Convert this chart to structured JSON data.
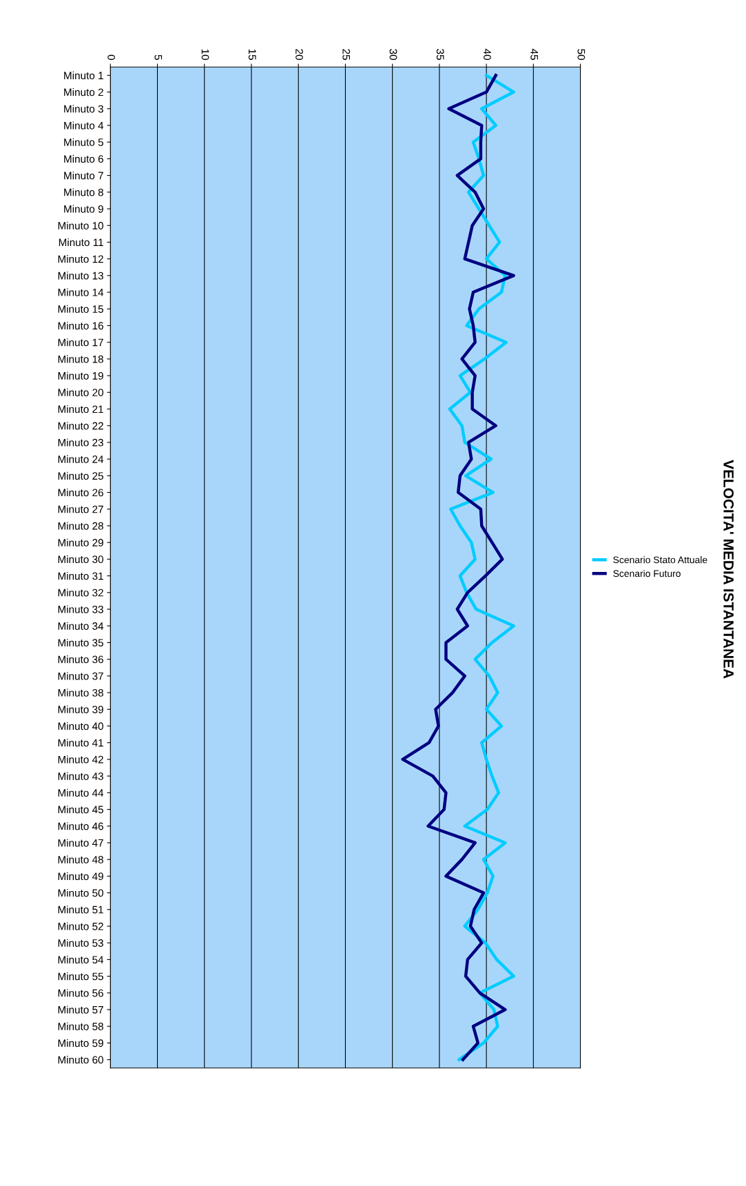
{
  "chart_data": {
    "type": "line",
    "orientation": "horizontal",
    "title": "VELOCITA' MEDIA ISTANTANEA",
    "categories": [
      "Minuto 1",
      "Minuto 2",
      "Minuto 3",
      "Minuto 4",
      "Minuto 5",
      "Minuto 6",
      "Minuto 7",
      "Minuto 8",
      "Minuto 9",
      "Minuto 10",
      "Minuto 11",
      "Minuto 12",
      "Minuto 13",
      "Minuto 14",
      "Minuto 15",
      "Minuto 16",
      "Minuto 17",
      "Minuto 18",
      "Minuto 19",
      "Minuto 20",
      "Minuto 21",
      "Minuto 22",
      "Minuto 23",
      "Minuto 24",
      "Minuto 25",
      "Minuto 26",
      "Minuto 27",
      "Minuto 28",
      "Minuto 29",
      "Minuto 30",
      "Minuto 31",
      "Minuto 32",
      "Minuto 33",
      "Minuto 34",
      "Minuto 35",
      "Minuto 36",
      "Minuto 37",
      "Minuto 38",
      "Minuto 39",
      "Minuto 40",
      "Minuto 41",
      "Minuto 42",
      "Minuto 43",
      "Minuto 44",
      "Minuto 45",
      "Minuto 46",
      "Minuto 47",
      "Minuto 48",
      "Minuto 49",
      "Minuto 50",
      "Minuto 51",
      "Minuto 52",
      "Minuto 53",
      "Minuto 54",
      "Minuto 55",
      "Minuto 56",
      "Minuto 57",
      "Minuto 58",
      "Minuto 59",
      "Minuto 60"
    ],
    "series": [
      {
        "name": "Scenario Stato Attuale",
        "color": "#00ccff",
        "values": [
          40.0,
          42.9,
          39.5,
          41.0,
          38.6,
          39.2,
          39.7,
          38.1,
          39.2,
          40.3,
          41.4,
          40.0,
          42.0,
          41.6,
          39.2,
          37.9,
          42.1,
          39.8,
          37.2,
          38.3,
          36.1,
          37.4,
          37.7,
          40.5,
          37.8,
          40.7,
          36.2,
          37.2,
          38.4,
          38.8,
          37.2,
          37.9,
          38.9,
          42.9,
          40.6,
          38.8,
          40.3,
          41.2,
          40.0,
          41.6,
          39.5,
          40.0,
          40.6,
          41.3,
          40.1,
          37.7,
          42.0,
          39.7,
          40.7,
          40.1,
          39.1,
          37.7,
          39.9,
          41.1,
          42.9,
          39.3,
          40.8,
          41.2,
          39.7,
          37.1
        ]
      },
      {
        "name": "Scenario Futuro",
        "color": "#000080",
        "values": [
          41.0,
          40.0,
          36.0,
          39.5,
          39.4,
          39.4,
          36.9,
          38.8,
          39.7,
          38.5,
          38.1,
          37.7,
          42.9,
          38.6,
          38.2,
          38.6,
          38.8,
          37.4,
          38.8,
          38.5,
          38.5,
          41.0,
          38.1,
          38.4,
          37.2,
          37.0,
          39.4,
          39.5,
          40.6,
          41.7,
          39.9,
          38.0,
          36.9,
          38.0,
          35.7,
          35.7,
          37.7,
          36.4,
          34.6,
          34.9,
          33.9,
          31.1,
          34.3,
          35.7,
          35.5,
          33.8,
          38.8,
          37.4,
          35.7,
          39.7,
          38.7,
          38.3,
          39.5,
          38.0,
          37.8,
          39.3,
          42.0,
          38.6,
          39.1,
          37.5
        ]
      }
    ],
    "xlim": [
      0,
      50
    ],
    "xticks": [
      0,
      5,
      10,
      15,
      20,
      25,
      30,
      35,
      40,
      45,
      50
    ],
    "grid": "x",
    "legend": "right",
    "line_style": "solid",
    "marker": "none"
  }
}
